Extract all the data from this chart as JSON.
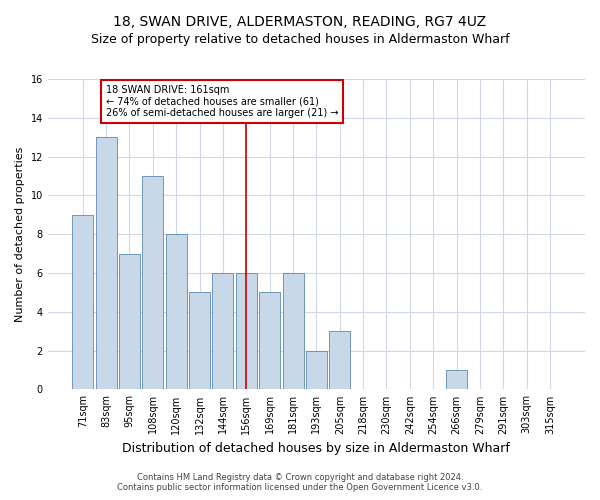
{
  "title": "18, SWAN DRIVE, ALDERMASTON, READING, RG7 4UZ",
  "subtitle": "Size of property relative to detached houses in Aldermaston Wharf",
  "xlabel": "Distribution of detached houses by size in Aldermaston Wharf",
  "ylabel": "Number of detached properties",
  "categories": [
    "71sqm",
    "83sqm",
    "95sqm",
    "108sqm",
    "120sqm",
    "132sqm",
    "144sqm",
    "156sqm",
    "169sqm",
    "181sqm",
    "193sqm",
    "205sqm",
    "218sqm",
    "230sqm",
    "242sqm",
    "254sqm",
    "266sqm",
    "279sqm",
    "291sqm",
    "303sqm",
    "315sqm"
  ],
  "values": [
    9,
    13,
    7,
    11,
    8,
    5,
    6,
    6,
    5,
    6,
    2,
    3,
    0,
    0,
    0,
    0,
    1,
    0,
    0,
    0,
    0
  ],
  "bar_color": "#c8d8e8",
  "bar_edge_color": "#5a8ab0",
  "vline_color": "#cc0000",
  "annotation_title": "18 SWAN DRIVE: 161sqm",
  "annotation_line1": "← 74% of detached houses are smaller (61)",
  "annotation_line2": "26% of semi-detached houses are larger (21) →",
  "annotation_box_color": "#cc0000",
  "ylim": [
    0,
    16
  ],
  "yticks": [
    0,
    2,
    4,
    6,
    8,
    10,
    12,
    14,
    16
  ],
  "footnote1": "Contains HM Land Registry data © Crown copyright and database right 2024.",
  "footnote2": "Contains public sector information licensed under the Open Government Licence v3.0.",
  "bg_color": "#ffffff",
  "grid_color": "#d0d8e8",
  "title_fontsize": 10,
  "subtitle_fontsize": 9,
  "xlabel_fontsize": 9,
  "ylabel_fontsize": 8,
  "tick_fontsize": 7,
  "annotation_fontsize": 7,
  "footnote_fontsize": 6
}
